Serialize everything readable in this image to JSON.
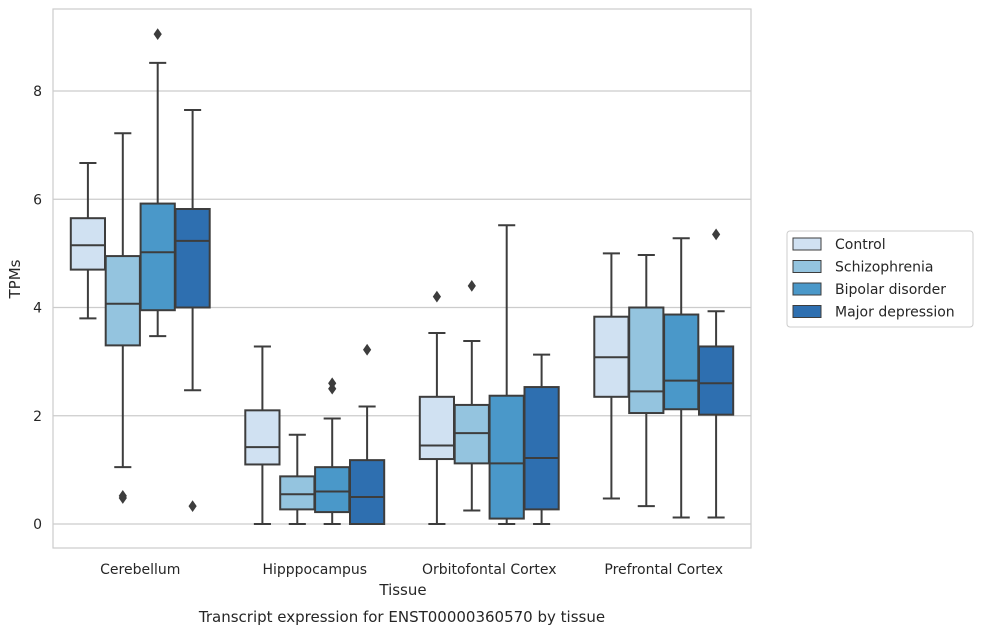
{
  "caption": "Transcript expression for ENST00000360570 by tissue",
  "chart_data": {
    "type": "boxplot",
    "xlabel": "Tissue",
    "ylabel": "TPMs",
    "ylim": [
      -0.45,
      9.6
    ],
    "yticks": [
      0,
      2,
      4,
      6,
      8
    ],
    "grid": "horizontal",
    "legend_position": "right",
    "categories": [
      "Cerebellum",
      "Hipppocampus",
      "Orbitofontal Cortex",
      "Prefrontal Cortex"
    ],
    "series": [
      {
        "name": "Control",
        "color": "#d0e1f2",
        "boxes": [
          {
            "whislo": 3.8,
            "q1": 4.7,
            "med": 5.15,
            "q3": 5.65,
            "whishi": 6.67,
            "fliers": []
          },
          {
            "whislo": 0.0,
            "q1": 1.1,
            "med": 1.42,
            "q3": 2.1,
            "whishi": 3.28,
            "fliers": []
          },
          {
            "whislo": 0.0,
            "q1": 1.2,
            "med": 1.45,
            "q3": 2.35,
            "whishi": 3.53,
            "fliers": [
              4.2
            ]
          },
          {
            "whislo": 0.47,
            "q1": 2.35,
            "med": 3.08,
            "q3": 3.83,
            "whishi": 5.0,
            "fliers": []
          }
        ]
      },
      {
        "name": "Schizophrenia",
        "color": "#94c4df",
        "boxes": [
          {
            "whislo": 1.05,
            "q1": 3.3,
            "med": 4.07,
            "q3": 4.95,
            "whishi": 7.22,
            "fliers": [
              0.48,
              0.52
            ]
          },
          {
            "whislo": 0.0,
            "q1": 0.27,
            "med": 0.55,
            "q3": 0.88,
            "whishi": 1.65,
            "fliers": []
          },
          {
            "whislo": 0.25,
            "q1": 1.12,
            "med": 1.68,
            "q3": 2.2,
            "whishi": 3.38,
            "fliers": [
              4.4
            ]
          },
          {
            "whislo": 0.33,
            "q1": 2.05,
            "med": 2.45,
            "q3": 4.0,
            "whishi": 4.97,
            "fliers": []
          }
        ]
      },
      {
        "name": "Bipolar disorder",
        "color": "#4a98c9",
        "boxes": [
          {
            "whislo": 3.47,
            "q1": 3.95,
            "med": 5.02,
            "q3": 5.92,
            "whishi": 8.52,
            "fliers": [
              9.05
            ]
          },
          {
            "whislo": 0.0,
            "q1": 0.22,
            "med": 0.6,
            "q3": 1.05,
            "whishi": 1.95,
            "fliers": [
              2.5,
              2.6
            ]
          },
          {
            "whislo": 0.0,
            "q1": 0.1,
            "med": 1.12,
            "q3": 2.37,
            "whishi": 5.52,
            "fliers": []
          },
          {
            "whislo": 0.12,
            "q1": 2.12,
            "med": 2.65,
            "q3": 3.87,
            "whishi": 5.28,
            "fliers": []
          }
        ]
      },
      {
        "name": "Major depression",
        "color": "#2e6fb0",
        "boxes": [
          {
            "whislo": 2.47,
            "q1": 4.0,
            "med": 5.23,
            "q3": 5.82,
            "whishi": 7.65,
            "fliers": [
              0.33
            ]
          },
          {
            "whislo": 0.0,
            "q1": 0.0,
            "med": 0.5,
            "q3": 1.18,
            "whishi": 2.17,
            "fliers": [
              3.22
            ]
          },
          {
            "whislo": 0.0,
            "q1": 0.27,
            "med": 1.22,
            "q3": 2.53,
            "whishi": 3.13,
            "fliers": []
          },
          {
            "whislo": 0.12,
            "q1": 2.02,
            "med": 2.6,
            "q3": 3.28,
            "whishi": 3.93,
            "fliers": [
              5.35
            ]
          }
        ]
      }
    ]
  }
}
